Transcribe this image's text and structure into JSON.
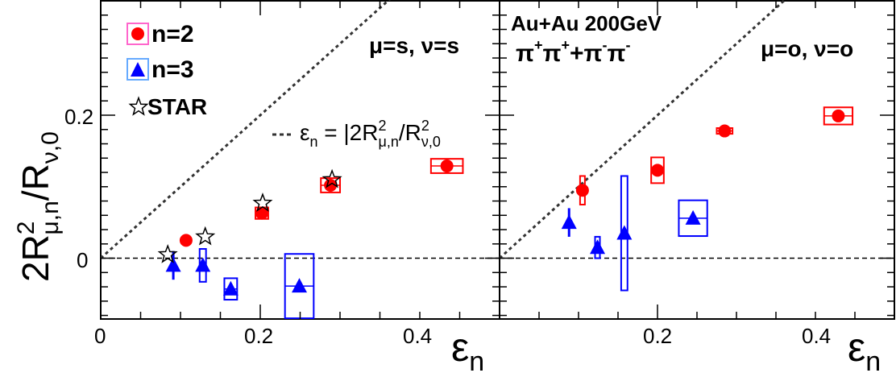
{
  "chart_data": [
    {
      "type": "scatter",
      "panel": "left",
      "panel_label": "μ=s, ν=s",
      "xlabel": "ε",
      "xlabel_sub": "n",
      "ylabel": "2R",
      "ylabel_sup": "2",
      "ylabel_sub": "μ,n",
      "ylabel_den": "/R",
      "ylabel_den_sup": "2",
      "ylabel_den_sub": "ν,0",
      "xlim": [
        0,
        0.5
      ],
      "ylim": [
        -0.085,
        0.36
      ],
      "x_ticks": [
        "0",
        "0.2",
        "0.4"
      ],
      "y_ticks": [
        "0",
        "0.2"
      ],
      "reference_line": {
        "type": "dashed",
        "y": 0
      },
      "diagonal_line": {
        "type": "dotted",
        "slope": 1,
        "label": "ε",
        "label_sub": "n",
        "label_rest": " = |2R",
        "label_sup2": "2",
        "label_sub2": "μ,n",
        "label_mid": "/R",
        "label_sup3": "2",
        "label_sub3": "ν,0"
      },
      "legend": [
        {
          "name": "n=2",
          "marker": "circle",
          "color": "#ff0000"
        },
        {
          "name": "n=3",
          "marker": "triangle",
          "color": "#0000ff"
        },
        {
          "name": "STAR",
          "marker": "star-open",
          "color": "#000000"
        }
      ],
      "series": [
        {
          "name": "n=2",
          "points": [
            {
              "x": 0.107,
              "y": 0.025,
              "xsys": 0,
              "ysys": 0
            },
            {
              "x": 0.202,
              "y": 0.063,
              "xsys": 0.008,
              "ysys": 0.008
            },
            {
              "x": 0.288,
              "y": 0.102,
              "xsys": 0.012,
              "ysys": 0.01
            },
            {
              "x": 0.434,
              "y": 0.129,
              "xsys": 0.02,
              "ysys": 0.01
            }
          ]
        },
        {
          "name": "n=3",
          "points": [
            {
              "x": 0.091,
              "y": -0.01,
              "yerr": 0.02,
              "xsys": 0,
              "ysys": 0
            },
            {
              "x": 0.128,
              "y": -0.01,
              "xsys": 0.004,
              "ysys": 0.023
            },
            {
              "x": 0.163,
              "y": -0.043,
              "xsys": 0.008,
              "ysys": 0.015
            },
            {
              "x": 0.249,
              "y": -0.039,
              "xsys": 0.018,
              "ysys": 0.045
            }
          ]
        },
        {
          "name": "STAR",
          "points": [
            {
              "x": 0.084,
              "y": 0.005
            },
            {
              "x": 0.131,
              "y": 0.03
            },
            {
              "x": 0.203,
              "y": 0.077
            },
            {
              "x": 0.29,
              "y": 0.11
            }
          ]
        }
      ]
    },
    {
      "type": "scatter",
      "panel": "right",
      "panel_label": "μ=o, ν=o",
      "title_line1": "Au+Au 200GeV",
      "title_line2": "π",
      "xlabel": "ε",
      "xlabel_sub": "n",
      "xlim": [
        0,
        0.5
      ],
      "ylim": [
        -0.085,
        0.36
      ],
      "x_ticks": [
        "0.2",
        "0.4"
      ],
      "reference_line": {
        "type": "dashed",
        "y": 0
      },
      "diagonal_line": {
        "type": "dotted",
        "slope": 1
      },
      "series": [
        {
          "name": "n=2",
          "points": [
            {
              "x": 0.105,
              "y": 0.095,
              "xsys": 0.003,
              "ysys": 0.02
            },
            {
              "x": 0.2,
              "y": 0.123,
              "xsys": 0.008,
              "ysys": 0.018
            },
            {
              "x": 0.285,
              "y": 0.178,
              "xsys": 0.01,
              "ysys": 0.004
            },
            {
              "x": 0.429,
              "y": 0.199,
              "xsys": 0.018,
              "ysys": 0.012
            }
          ]
        },
        {
          "name": "n=3",
          "points": [
            {
              "x": 0.088,
              "y": 0.05,
              "yerr": 0.02,
              "xsys": 0,
              "ysys": 0
            },
            {
              "x": 0.124,
              "y": 0.015,
              "xsys": 0.002,
              "ysys": 0.015
            },
            {
              "x": 0.158,
              "y": 0.035,
              "xsys": 0.004,
              "ysys": 0.08
            },
            {
              "x": 0.245,
              "y": 0.056,
              "xsys": 0.018,
              "ysys": 0.025
            }
          ]
        }
      ]
    }
  ]
}
